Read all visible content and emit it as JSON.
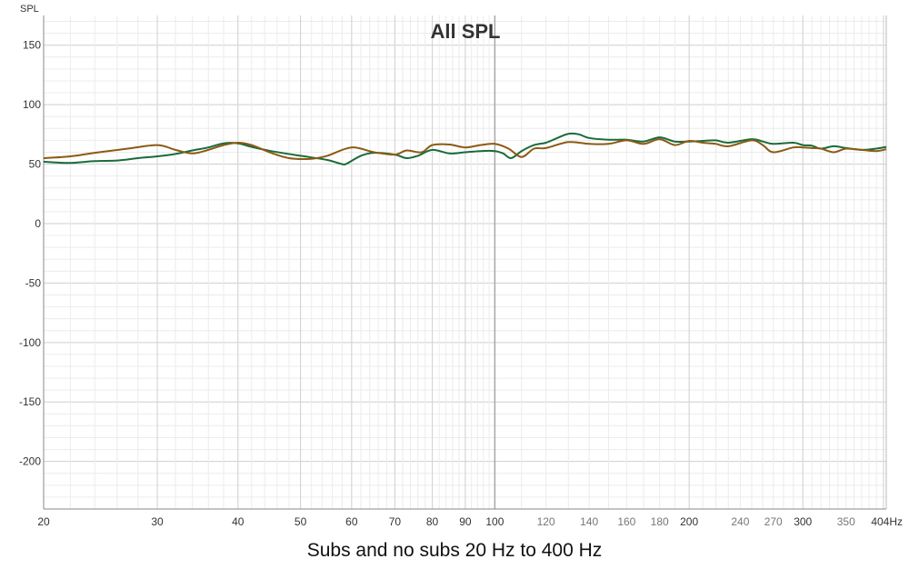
{
  "chart_data": {
    "type": "line",
    "title": "All SPL",
    "ylabel": "SPL",
    "xunit": "Hz",
    "xscale": "log",
    "xlim": [
      20,
      404
    ],
    "ylim": [
      -240,
      175
    ],
    "grid": true,
    "yticks": [
      150,
      100,
      50,
      0,
      -50,
      -100,
      -150,
      -200
    ],
    "xticks_major": [
      20,
      30,
      40,
      50,
      60,
      70,
      80,
      90,
      100,
      200,
      300
    ],
    "xticks_minor": [
      120,
      140,
      160,
      180,
      240,
      270,
      350
    ],
    "xtick_last": "404Hz",
    "series": [
      {
        "color": "#1a6b3a",
        "points": [
          [
            20,
            52
          ],
          [
            22,
            51
          ],
          [
            24,
            52.5
          ],
          [
            26,
            53
          ],
          [
            28,
            55
          ],
          [
            30,
            56.5
          ],
          [
            32,
            58.5
          ],
          [
            34,
            61.5
          ],
          [
            36,
            64
          ],
          [
            38,
            67.5
          ],
          [
            40,
            67.5
          ],
          [
            42,
            64.5
          ],
          [
            45,
            61
          ],
          [
            50,
            57
          ],
          [
            55,
            53.5
          ],
          [
            58,
            50
          ],
          [
            59,
            50.5
          ],
          [
            62,
            57
          ],
          [
            65,
            59.5
          ],
          [
            70,
            58
          ],
          [
            73,
            55
          ],
          [
            76,
            57
          ],
          [
            80,
            62
          ],
          [
            85,
            59
          ],
          [
            90,
            60
          ],
          [
            95,
            61
          ],
          [
            100,
            61
          ],
          [
            103,
            59
          ],
          [
            106,
            55
          ],
          [
            110,
            61
          ],
          [
            115,
            66
          ],
          [
            120,
            68
          ],
          [
            125,
            72
          ],
          [
            130,
            75.5
          ],
          [
            135,
            75
          ],
          [
            140,
            72
          ],
          [
            150,
            70.5
          ],
          [
            160,
            70.5
          ],
          [
            170,
            69
          ],
          [
            180,
            72.5
          ],
          [
            190,
            69
          ],
          [
            200,
            69
          ],
          [
            210,
            69.5
          ],
          [
            220,
            70
          ],
          [
            230,
            68
          ],
          [
            250,
            71
          ],
          [
            260,
            69
          ],
          [
            270,
            67
          ],
          [
            290,
            68
          ],
          [
            300,
            66
          ],
          [
            310,
            65.5
          ],
          [
            320,
            63
          ],
          [
            335,
            65
          ],
          [
            350,
            63.5
          ],
          [
            370,
            62
          ],
          [
            390,
            63
          ],
          [
            404,
            64.5
          ]
        ]
      },
      {
        "color": "#8b5a14",
        "points": [
          [
            20,
            55
          ],
          [
            22,
            56.5
          ],
          [
            24,
            59.5
          ],
          [
            27,
            63
          ],
          [
            30,
            66
          ],
          [
            32,
            62
          ],
          [
            34,
            59
          ],
          [
            36,
            62
          ],
          [
            38,
            66
          ],
          [
            40,
            68
          ],
          [
            42,
            66
          ],
          [
            45,
            59.5
          ],
          [
            48,
            55
          ],
          [
            52,
            54.5
          ],
          [
            55,
            57
          ],
          [
            60,
            64
          ],
          [
            65,
            60
          ],
          [
            70,
            58
          ],
          [
            73,
            61.5
          ],
          [
            77,
            60
          ],
          [
            80,
            66
          ],
          [
            85,
            66.5
          ],
          [
            90,
            64
          ],
          [
            95,
            66
          ],
          [
            100,
            67
          ],
          [
            105,
            63
          ],
          [
            110,
            56
          ],
          [
            115,
            63
          ],
          [
            120,
            63.5
          ],
          [
            130,
            68.5
          ],
          [
            140,
            67
          ],
          [
            150,
            67
          ],
          [
            160,
            70
          ],
          [
            170,
            67
          ],
          [
            180,
            71
          ],
          [
            190,
            66
          ],
          [
            200,
            69.5
          ],
          [
            210,
            68
          ],
          [
            220,
            67
          ],
          [
            230,
            65
          ],
          [
            250,
            70
          ],
          [
            260,
            66
          ],
          [
            270,
            60
          ],
          [
            290,
            64
          ],
          [
            300,
            64
          ],
          [
            310,
            63.5
          ],
          [
            320,
            63
          ],
          [
            335,
            60
          ],
          [
            350,
            63
          ],
          [
            370,
            62
          ],
          [
            390,
            61
          ],
          [
            404,
            62.5
          ]
        ]
      }
    ]
  },
  "caption": "Subs and no subs 20 Hz to 400 Hz"
}
